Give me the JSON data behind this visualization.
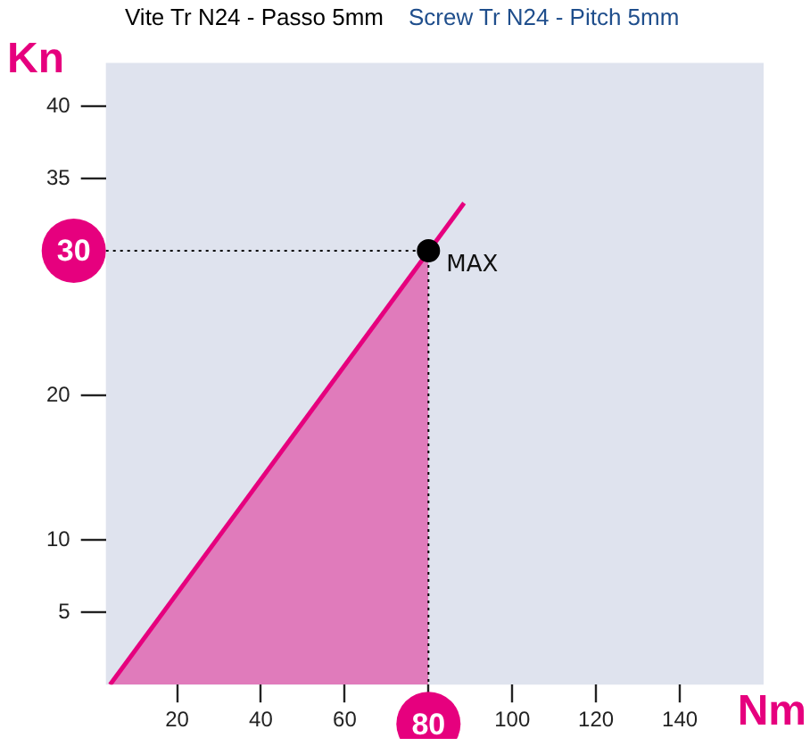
{
  "chart_data": {
    "type": "area",
    "title": "Vite Tr N24 - Passo 5mm",
    "subtitle": "Screw Tr N24 - Pitch 5mm",
    "xlabel": "Nm",
    "ylabel": "Kn",
    "xlim": [
      3,
      160
    ],
    "ylim": [
      0,
      43
    ],
    "xticks": [
      20,
      40,
      60,
      {
        "value": 80,
        "label": null
      },
      100,
      120,
      140
    ],
    "yticks": [
      5,
      10,
      20,
      35,
      40
    ],
    "series": [
      {
        "type": "area",
        "color": "#e07bbb",
        "x": [
          4,
          80
        ],
        "values": [
          0,
          30
        ]
      },
      {
        "type": "line",
        "color": "#e6007e",
        "x": [
          4,
          88.5
        ],
        "values": [
          0,
          33.3
        ]
      },
      {
        "type": "scatter",
        "color": "#000000",
        "x": [
          80
        ],
        "values": [
          30
        ]
      }
    ],
    "ref_lines": [
      {
        "axis": "y",
        "value": 30,
        "label": "30",
        "color": "#000000",
        "line_style": "dotted"
      },
      {
        "axis": "x",
        "value": 80,
        "label": "80",
        "color": "#000000",
        "line_style": "dotted"
      }
    ],
    "annotations": [
      {
        "text": "MAX",
        "x": 80,
        "y": 30
      }
    ],
    "grid": false,
    "legend": false
  }
}
